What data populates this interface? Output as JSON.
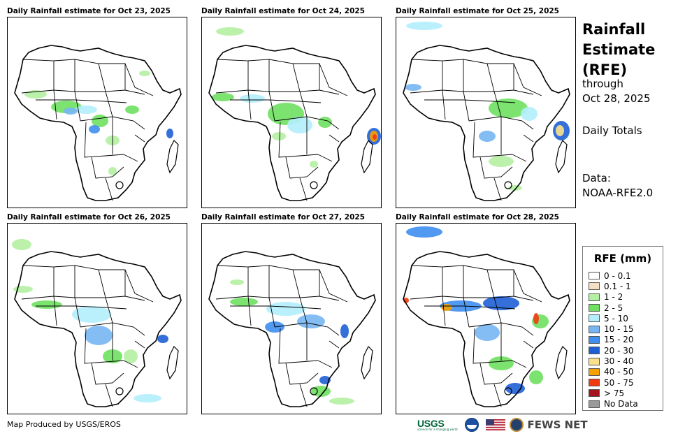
{
  "panels": [
    {
      "title": "Daily Rainfall estimate for Oct 23, 2025"
    },
    {
      "title": "Daily Rainfall estimate for Oct 24, 2025"
    },
    {
      "title": "Daily Rainfall estimate for Oct 25, 2025"
    },
    {
      "title": "Daily Rainfall estimate for Oct 26, 2025"
    },
    {
      "title": "Daily Rainfall estimate for Oct 27, 2025"
    },
    {
      "title": "Daily Rainfall estimate for Oct 28, 2025"
    }
  ],
  "sidebar": {
    "title_line1": "Rainfall",
    "title_line2": "Estimate",
    "title_line3": "(RFE)",
    "through": "through",
    "date": "Oct 28, 2025",
    "totals": "Daily Totals",
    "data_label": "Data:",
    "data_source": "NOAA-RFE2.0"
  },
  "legend": {
    "title": "RFE (mm)",
    "items": [
      {
        "label": "0 - 0.1",
        "color": "#ffffff"
      },
      {
        "label": "0.1 - 1",
        "color": "#f3dfc1"
      },
      {
        "label": "1 - 2",
        "color": "#b4f0a2"
      },
      {
        "label": "2 - 5",
        "color": "#6fe060"
      },
      {
        "label": "5 - 10",
        "color": "#b3eefc"
      },
      {
        "label": "10 - 15",
        "color": "#77b6f2"
      },
      {
        "label": "15 - 20",
        "color": "#3f8ff0"
      },
      {
        "label": "20 - 30",
        "color": "#1e5fd6"
      },
      {
        "label": "30 - 40",
        "color": "#fbe18c"
      },
      {
        "label": "40 - 50",
        "color": "#f5a100"
      },
      {
        "label": "50 - 75",
        "color": "#f23a10"
      },
      {
        "label": "> 75",
        "color": "#a4161c"
      },
      {
        "label": "No Data",
        "color": "#9a9a9a"
      }
    ]
  },
  "footer": {
    "credit": "Map Produced by USGS/EROS",
    "usgs": "USGS",
    "usgs_tagline": "science for a changing world",
    "fews": "FEWS NET"
  }
}
